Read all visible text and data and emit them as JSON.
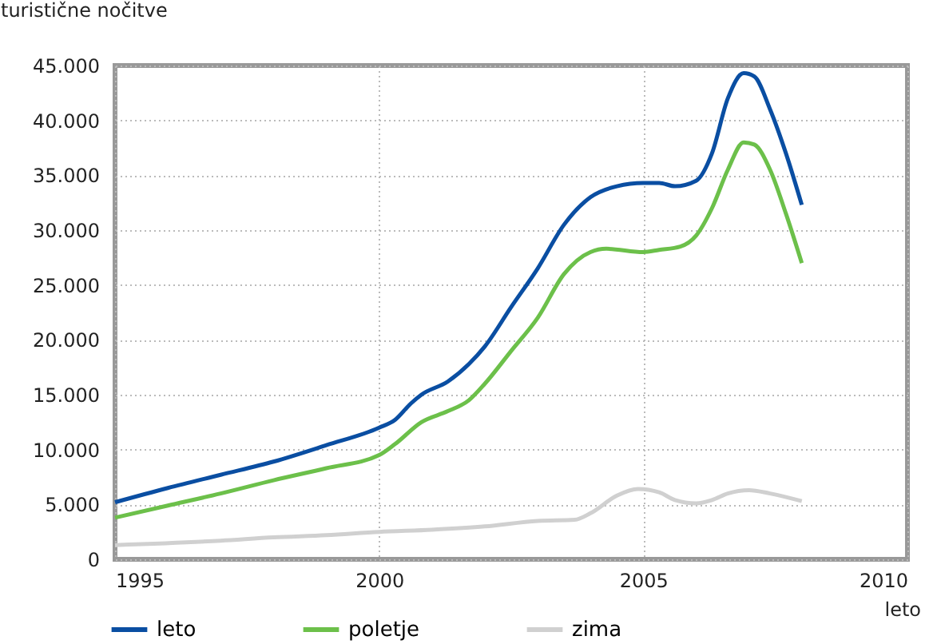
{
  "chart_data": {
    "type": "line",
    "ylabel": "turistične nočitve",
    "xlabel": "leto",
    "xlim": [
      1995,
      2010
    ],
    "xticks": [
      1995,
      2000,
      2005,
      2010
    ],
    "ylim": [
      0,
      45000
    ],
    "yticks": [
      0,
      {
        "value": 5000,
        "label": "5.000"
      },
      {
        "value": 10000,
        "label": "10.000"
      },
      {
        "value": 15000,
        "label": "15.000"
      },
      {
        "value": 20000,
        "label": "20.000"
      },
      {
        "value": 25000,
        "label": "25.000"
      },
      {
        "value": 30000,
        "label": "30.000"
      },
      {
        "value": 35000,
        "label": "35.000"
      },
      {
        "value": 40000,
        "label": "40.000"
      },
      {
        "value": 45000,
        "label": "45.000"
      }
    ],
    "grid": true,
    "legend": "bottom",
    "line_style": "solid",
    "marker": "none",
    "series": [
      {
        "name": "leto",
        "color": "#0a4ea2",
        "x": [
          1995,
          1996,
          1997,
          1998,
          1999,
          2000,
          2000.3,
          2000.6,
          2000.8,
          2001.3,
          2001.7,
          2002,
          2002.5,
          2003,
          2003.5,
          2004,
          2004.5,
          2005,
          2005.3,
          2005.6,
          2006,
          2006.3,
          2006.6,
          2006.9,
          2007.1,
          2007.4,
          2007.7,
          2008
        ],
        "values": [
          5200,
          6500,
          7700,
          8900,
          10400,
          12000,
          12700,
          14200,
          15000,
          16200,
          17800,
          19400,
          23000,
          26500,
          30500,
          33000,
          34000,
          34300,
          34300,
          34000,
          34500,
          37000,
          42000,
          44300,
          44000,
          41000,
          37000,
          32300
        ]
      },
      {
        "name": "poletje",
        "color": "#6cc04a",
        "x": [
          1995,
          1996,
          1997,
          1998,
          1999,
          2000,
          2000.3,
          2000.8,
          2001.3,
          2001.7,
          2002,
          2002.5,
          2003,
          2003.5,
          2004,
          2004.3,
          2005,
          2005.3,
          2005.7,
          2006,
          2006.3,
          2006.6,
          2006.9,
          2007.1,
          2007.4,
          2007.7,
          2008
        ],
        "values": [
          3800,
          4900,
          6000,
          7200,
          8300,
          9500,
          10500,
          12500,
          13500,
          14500,
          16000,
          19000,
          22000,
          26000,
          28000,
          28300,
          28000,
          28200,
          28500,
          29500,
          32000,
          35500,
          38000,
          37800,
          35500,
          31500,
          27000
        ]
      },
      {
        "name": "zima",
        "color": "#d0d0d0",
        "x": [
          1995,
          1997,
          1998,
          1999,
          2000,
          2001,
          2002,
          2003,
          2003.7,
          2004,
          2004.5,
          2004.9,
          2005.3,
          2005.6,
          2006,
          2006.3,
          2006.6,
          2007,
          2007.4,
          2008
        ],
        "values": [
          1300,
          1700,
          2000,
          2200,
          2500,
          2700,
          3000,
          3500,
          3600,
          4200,
          5800,
          6400,
          6100,
          5400,
          5100,
          5400,
          6000,
          6300,
          6000,
          5300
        ]
      }
    ]
  }
}
